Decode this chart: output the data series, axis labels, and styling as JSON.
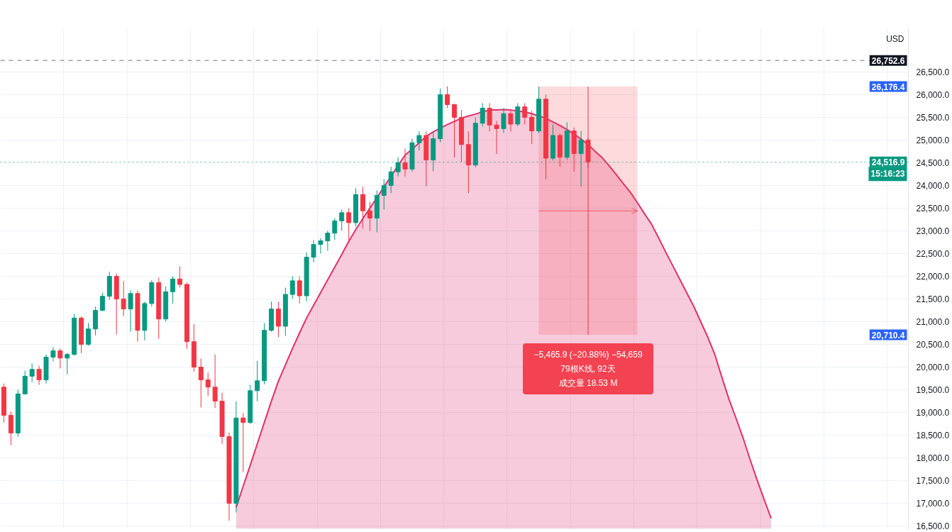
{
  "chart_data": {
    "type": "candlestick",
    "categories": [
      null,
      null,
      null,
      null,
      null,
      null,
      null,
      null,
      null,
      null,
      null,
      null,
      null,
      null,
      null,
      null,
      null,
      null,
      null,
      null,
      null,
      null,
      null,
      null,
      null,
      null,
      null,
      null,
      null,
      null,
      null,
      null,
      null,
      null,
      null,
      null,
      null,
      null,
      null,
      null,
      null,
      null,
      null,
      null,
      null,
      null,
      null,
      null,
      null,
      null,
      null,
      null,
      null,
      null,
      null,
      null,
      null,
      null,
      null,
      null,
      null,
      null,
      null,
      null,
      null,
      null,
      null,
      null,
      null,
      null,
      null,
      null,
      null,
      null,
      null,
      null,
      null,
      null,
      null,
      null,
      null,
      null,
      null,
      null,
      null,
      null,
      null,
      null,
      null,
      null,
      null,
      null,
      null,
      null,
      null,
      null,
      null,
      null,
      null,
      null,
      null,
      null,
      null,
      null,
      null,
      null,
      null,
      null,
      null,
      null,
      null,
      null,
      null,
      null,
      null,
      null,
      null,
      null,
      null,
      null,
      null,
      null,
      null,
      null,
      null,
      null,
      null,
      null,
      null
    ],
    "ohlc": [
      [
        19560,
        19640,
        18780,
        18940
      ],
      [
        18940,
        19020,
        18280,
        18550
      ],
      [
        18550,
        19500,
        18470,
        19410
      ],
      [
        19410,
        19920,
        19400,
        19800
      ],
      [
        19800,
        20080,
        19670,
        19950
      ],
      [
        19950,
        20030,
        19610,
        19720
      ],
      [
        19720,
        20280,
        19640,
        20220
      ],
      [
        20220,
        20440,
        20130,
        20360
      ],
      [
        20360,
        20410,
        19970,
        20200
      ],
      [
        20200,
        20310,
        19840,
        20280
      ],
      [
        20280,
        21170,
        20250,
        21080
      ],
      [
        21080,
        21120,
        20310,
        20500
      ],
      [
        20500,
        20970,
        20470,
        20840
      ],
      [
        20840,
        21330,
        20700,
        21250
      ],
      [
        21250,
        21640,
        21230,
        21560
      ],
      [
        21560,
        22100,
        21480,
        22000
      ],
      [
        22000,
        22060,
        20720,
        21500
      ],
      [
        21500,
        21900,
        21120,
        21280
      ],
      [
        21280,
        21690,
        20780,
        21620
      ],
      [
        21620,
        21690,
        20560,
        20810
      ],
      [
        20810,
        21440,
        20590,
        21400
      ],
      [
        21400,
        21910,
        21330,
        21860
      ],
      [
        21860,
        21970,
        20620,
        21060
      ],
      [
        21060,
        21780,
        21000,
        21660
      ],
      [
        21660,
        22000,
        21400,
        21940
      ],
      [
        21940,
        22220,
        21750,
        21820
      ],
      [
        21820,
        21860,
        20400,
        20560
      ],
      [
        20560,
        20950,
        19900,
        20000
      ],
      [
        20000,
        20190,
        19110,
        19720
      ],
      [
        19720,
        19880,
        19360,
        19560
      ],
      [
        19560,
        20280,
        19100,
        19250
      ],
      [
        19250,
        19430,
        18310,
        18470
      ],
      [
        18470,
        18560,
        16620,
        17000
      ],
      [
        17000,
        19250,
        16800,
        18880
      ],
      [
        18880,
        18990,
        17690,
        18780
      ],
      [
        18780,
        19610,
        18750,
        19480
      ],
      [
        19480,
        20140,
        19250,
        19700
      ],
      [
        19700,
        20970,
        19620,
        20810
      ],
      [
        20810,
        21440,
        20780,
        21280
      ],
      [
        21280,
        21440,
        20660,
        20900
      ],
      [
        20900,
        21750,
        20690,
        21600
      ],
      [
        21600,
        22000,
        21500,
        21900
      ],
      [
        21900,
        22000,
        21400,
        21570
      ],
      [
        21570,
        22530,
        21450,
        22420
      ],
      [
        22420,
        22800,
        22310,
        22700
      ],
      [
        22700,
        22840,
        22500,
        22780
      ],
      [
        22780,
        23000,
        22560,
        22950
      ],
      [
        22950,
        23280,
        22800,
        23220
      ],
      [
        23220,
        23470,
        23000,
        23400
      ],
      [
        23400,
        23500,
        22730,
        23180
      ],
      [
        23180,
        23940,
        23100,
        23800
      ],
      [
        23800,
        23970,
        23050,
        23440
      ],
      [
        23440,
        23640,
        23000,
        23280
      ],
      [
        23280,
        23890,
        22970,
        23780
      ],
      [
        23780,
        24140,
        23470,
        24000
      ],
      [
        24000,
        24410,
        23830,
        24300
      ],
      [
        24300,
        24620,
        24200,
        24500
      ],
      [
        24500,
        24810,
        24200,
        24360
      ],
      [
        24360,
        25030,
        24300,
        24940
      ],
      [
        24940,
        25190,
        24770,
        25100
      ],
      [
        25100,
        25190,
        23980,
        24560
      ],
      [
        24560,
        25190,
        24310,
        25030
      ],
      [
        25030,
        26130,
        24950,
        26000
      ],
      [
        26000,
        26180,
        25700,
        25780
      ],
      [
        25780,
        25800,
        24610,
        25500
      ],
      [
        25500,
        25660,
        24520,
        24900
      ],
      [
        24900,
        25190,
        23830,
        24450
      ],
      [
        24450,
        25500,
        24400,
        25370
      ],
      [
        25370,
        25810,
        25300,
        25700
      ],
      [
        25700,
        25810,
        25190,
        25330
      ],
      [
        25330,
        25420,
        24690,
        25250
      ],
      [
        25250,
        25700,
        25160,
        25580
      ],
      [
        25580,
        25670,
        25190,
        25350
      ],
      [
        25350,
        25810,
        25300,
        25730
      ],
      [
        25730,
        25810,
        25340,
        25500
      ],
      [
        25500,
        25640,
        24910,
        25200
      ],
      [
        25200,
        26180,
        25150,
        25900
      ],
      [
        25900,
        26000,
        24140,
        24600
      ],
      [
        24600,
        25340,
        24550,
        25100
      ],
      [
        25100,
        25140,
        24410,
        24620
      ],
      [
        24620,
        25390,
        24560,
        25200
      ],
      [
        25200,
        25280,
        24300,
        24700
      ],
      [
        24700,
        25200,
        23980,
        25000
      ],
      [
        25000,
        25050,
        24390,
        24516.9
      ],
      null,
      null,
      null,
      null,
      null,
      null,
      null,
      null,
      null,
      null,
      null,
      null,
      null,
      null,
      null,
      null,
      null,
      null,
      null,
      null,
      null,
      null,
      null,
      null,
      null,
      null,
      null,
      null,
      null,
      null,
      null,
      null,
      null,
      null,
      null,
      null,
      null,
      null,
      null,
      null,
      null,
      null,
      null,
      null,
      null
    ],
    "colors": [
      "#f23645",
      "#f23645",
      "#089981",
      "#089981",
      "#089981",
      "#f23645",
      "#089981",
      "#089981",
      "#f23645",
      "#089981",
      "#089981",
      "#f23645",
      "#089981",
      "#089981",
      "#089981",
      "#089981",
      "#f23645",
      "#f23645",
      "#089981",
      "#f23645",
      "#089981",
      "#089981",
      "#f23645",
      "#089981",
      "#089981",
      "#f23645",
      "#f23645",
      "#f23645",
      "#f23645",
      "#f23645",
      "#f23645",
      "#f23645",
      "#f23645",
      "#089981",
      "#f23645",
      "#089981",
      "#089981",
      "#089981",
      "#089981",
      "#f23645",
      "#089981",
      "#089981",
      "#f23645",
      "#089981",
      "#089981",
      "#089981",
      "#089981",
      "#089981",
      "#089981",
      "#f23645",
      "#089981",
      "#f23645",
      "#f23645",
      "#089981",
      "#089981",
      "#089981",
      "#089981",
      "#f23645",
      "#089981",
      "#089981",
      "#f23645",
      "#089981",
      "#089981",
      "#f23645",
      "#f23645",
      "#f23645",
      "#f23645",
      "#089981",
      "#089981",
      "#f23645",
      "#f23645",
      "#089981",
      "#f23645",
      "#089981",
      "#f23645",
      "#f23645",
      "#089981",
      "#f23645",
      "#089981",
      "#f23645",
      "#089981",
      "#f23645",
      "#089981",
      "#f23645",
      null,
      null,
      null,
      null,
      null,
      null,
      null,
      null,
      null,
      null,
      null,
      null,
      null,
      null,
      null,
      null,
      null,
      null,
      null,
      null,
      null,
      null,
      null,
      null,
      null,
      null,
      null,
      null,
      null,
      null,
      null,
      null,
      null,
      null,
      null,
      null,
      null,
      null,
      null,
      null,
      null,
      null,
      null,
      null,
      null
    ],
    "series": [
      {
        "type": "area",
        "color": "#e0306e",
        "values": [
          null,
          null,
          null,
          null,
          null,
          null,
          null,
          null,
          null,
          null,
          null,
          null,
          null,
          null,
          null,
          null,
          null,
          null,
          null,
          null,
          null,
          null,
          null,
          null,
          null,
          null,
          null,
          null,
          null,
          null,
          null,
          null,
          null,
          16910,
          17380,
          17840,
          18310,
          18780,
          19250,
          19690,
          20050,
          20410,
          20750,
          21080,
          21360,
          21640,
          21920,
          22200,
          22480,
          22770,
          23030,
          23270,
          23500,
          23730,
          23970,
          24200,
          24440,
          24670,
          24800,
          24940,
          25080,
          25180,
          25260,
          25340,
          25410,
          25480,
          25530,
          25570,
          25620,
          25660,
          25660,
          25670,
          25660,
          25640,
          25620,
          25580,
          25530,
          25480,
          25400,
          25320,
          25230,
          25130,
          25020,
          24900,
          24750,
          24610,
          24430,
          24240,
          24040,
          23850,
          23620,
          23380,
          23150,
          22850,
          22540,
          22240,
          21940,
          21640,
          21340,
          21000,
          20660,
          20280,
          19780,
          19300,
          18880,
          18450,
          17970,
          17520,
          17090,
          16670,
          null,
          null,
          null,
          null,
          null,
          null,
          null,
          null,
          null,
          null,
          null,
          null,
          null,
          null,
          null,
          null,
          null,
          null,
          null
        ]
      },
      {
        "type": "line",
        "color": "#f23645",
        "values": [
          null,
          null,
          null,
          null,
          null,
          null,
          null,
          null,
          null,
          null,
          null,
          null,
          null,
          null,
          null,
          null,
          null,
          null,
          null,
          null,
          null,
          null,
          null,
          null,
          null,
          null,
          null,
          null,
          null,
          null,
          null,
          null,
          null,
          null,
          null,
          null,
          null,
          null,
          null,
          null,
          null,
          null,
          null,
          null,
          null,
          null,
          null,
          null,
          null,
          null,
          null,
          null,
          null,
          null,
          null,
          null,
          null,
          null,
          null,
          null,
          null,
          null,
          null,
          null,
          null,
          null,
          null,
          null,
          null,
          null,
          null,
          null,
          null,
          null,
          null,
          null,
          23440,
          23440,
          23440,
          23440,
          23440,
          23440,
          23440,
          23440,
          23440,
          23440,
          23440,
          23440,
          23440,
          23440,
          23440,
          null,
          null,
          null,
          null,
          null,
          null,
          null,
          null,
          null,
          null,
          null,
          null,
          null,
          null,
          null,
          null,
          null,
          null,
          null,
          null,
          null,
          null,
          null,
          null,
          null,
          null,
          null,
          null,
          null,
          null,
          null,
          null,
          null,
          null,
          null,
          null,
          null,
          null
        ],
        "errors": [
          null,
          null,
          null,
          null,
          null,
          null,
          null,
          null,
          null,
          null,
          null,
          null,
          null,
          null,
          null,
          null,
          null,
          null,
          null,
          null,
          null,
          null,
          null,
          null,
          null,
          null,
          null,
          null,
          null,
          null,
          null,
          null,
          null,
          null,
          null,
          null,
          null,
          null,
          null,
          null,
          null,
          null,
          null,
          null,
          null,
          null,
          null,
          null,
          null,
          null,
          null,
          null,
          null,
          null,
          null,
          null,
          null,
          null,
          null,
          null,
          null,
          null,
          null,
          null,
          null,
          null,
          null,
          null,
          null,
          null,
          null,
          null,
          null,
          null,
          null,
          null,
          null,
          null,
          null,
          null,
          null,
          null,
          null,
          [
            20710.4,
            26176.4
          ],
          null,
          null,
          null,
          null,
          null,
          null,
          null,
          null,
          null,
          null,
          null,
          null,
          null,
          null,
          null,
          null,
          null,
          null,
          null,
          null,
          null,
          null,
          null,
          null,
          null,
          null,
          null,
          null,
          null,
          null,
          null,
          null,
          null,
          null,
          null,
          null,
          null,
          null,
          null,
          null,
          null,
          null,
          null,
          null,
          null
        ],
        "lower": [
          null,
          null,
          null,
          null,
          null,
          null,
          null,
          null,
          null,
          null,
          null,
          null,
          null,
          null,
          null,
          null,
          null,
          null,
          null,
          null,
          null,
          null,
          null,
          null,
          null,
          null,
          null,
          null,
          null,
          null,
          null,
          null,
          null,
          null,
          null,
          null,
          null,
          null,
          null,
          null,
          null,
          null,
          null,
          null,
          null,
          null,
          null,
          null,
          null,
          null,
          null,
          null,
          null,
          null,
          null,
          null,
          null,
          null,
          null,
          null,
          null,
          null,
          null,
          null,
          null,
          null,
          null,
          null,
          null,
          null,
          null,
          null,
          null,
          null,
          null,
          null,
          20710.4,
          20710.4,
          20710.4,
          20710.4,
          20710.4,
          20710.4,
          20710.4,
          20710.4,
          20710.4,
          20710.4,
          20710.4,
          20710.4,
          20710.4,
          20710.4,
          20710.4,
          null,
          null,
          null,
          null,
          null,
          null,
          null,
          null,
          null,
          null,
          null,
          null,
          null,
          null,
          null,
          null,
          null,
          null,
          null,
          null,
          null,
          null,
          null,
          null,
          null,
          null,
          null,
          null,
          null,
          null,
          null,
          null,
          null,
          null,
          null,
          null,
          null,
          null
        ],
        "upper": [
          null,
          null,
          null,
          null,
          null,
          null,
          null,
          null,
          null,
          null,
          null,
          null,
          null,
          null,
          null,
          null,
          null,
          null,
          null,
          null,
          null,
          null,
          null,
          null,
          null,
          null,
          null,
          null,
          null,
          null,
          null,
          null,
          null,
          null,
          null,
          null,
          null,
          null,
          null,
          null,
          null,
          null,
          null,
          null,
          null,
          null,
          null,
          null,
          null,
          null,
          null,
          null,
          null,
          null,
          null,
          null,
          null,
          null,
          null,
          null,
          null,
          null,
          null,
          null,
          null,
          null,
          null,
          null,
          null,
          null,
          null,
          null,
          null,
          null,
          null,
          null,
          26176.4,
          26176.4,
          26176.4,
          26176.4,
          26176.4,
          26176.4,
          26176.4,
          26176.4,
          26176.4,
          26176.4,
          26176.4,
          26176.4,
          26176.4,
          26176.4,
          26176.4,
          null,
          null,
          null,
          null,
          null,
          null,
          null,
          null,
          null,
          null,
          null,
          null,
          null,
          null,
          null,
          null,
          null,
          null,
          null,
          null,
          null,
          null,
          null,
          null,
          null,
          null,
          null,
          null,
          null,
          null,
          null,
          null,
          null,
          null,
          null,
          null,
          null,
          null
        ]
      }
    ],
    "ylabel": "USD",
    "ylim": [
      16440,
      27450
    ],
    "yticks": [
      {
        "value": 16500,
        "label": "16,500.0"
      },
      {
        "value": 17000,
        "label": "17,000.0"
      },
      {
        "value": 17500,
        "label": "17,500.0"
      },
      {
        "value": 18000,
        "label": "18,000.0"
      },
      {
        "value": 18500,
        "label": "18,500.0"
      },
      {
        "value": 19000,
        "label": "19,000.0"
      },
      {
        "value": 19500,
        "label": "19,500.0"
      },
      {
        "value": 20000,
        "label": "20,000.0"
      },
      {
        "value": 20500,
        "label": "20,500.0"
      },
      {
        "value": 21000,
        "label": "21,000.0"
      },
      {
        "value": 21500,
        "label": "21,500.0"
      },
      {
        "value": 22000,
        "label": "22,000.0"
      },
      {
        "value": 22500,
        "label": "22,500.0"
      },
      {
        "value": 23000,
        "label": "23,000.0"
      },
      {
        "value": 23500,
        "label": "23,500.0"
      },
      {
        "value": 24000,
        "label": "24,000.0"
      },
      {
        "value": 24500,
        "label": "24,500.0"
      },
      {
        "value": 25000,
        "label": "25,000.0"
      },
      {
        "value": 25500,
        "label": "25,500.0"
      },
      {
        "value": 26000,
        "label": "26,000.0"
      },
      {
        "value": 26500,
        "label": "26,500.0"
      }
    ],
    "ref_lines": [
      {
        "axis": "y",
        "value": 26752.6,
        "label": "26,752.6",
        "color": "#131722",
        "line_style": "dashed"
      },
      {
        "axis": "y",
        "value": 24516.9,
        "label": "24,516.9",
        "color": "#089981",
        "line_style": "dotted"
      }
    ],
    "annotations": [
      {
        "text": "15:16:23",
        "y": 24516.9
      },
      "26,176.4",
      "20,710.4",
      "−5,465.9 (−20.88%) −54,659",
      "79根K线, 92天",
      "成交量 18.53 M"
    ],
    "grid": true,
    "tick_labels": "y"
  }
}
